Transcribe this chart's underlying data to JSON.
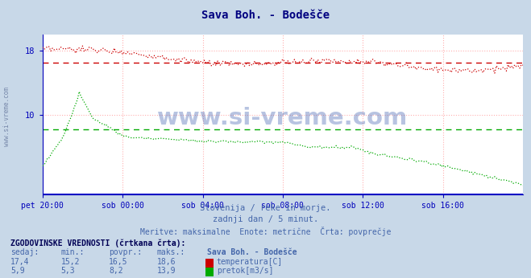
{
  "title": "Sava Boh. - Bodešče",
  "title_color": "#000080",
  "fig_bg_color": "#c8d8e8",
  "plot_bg_color": "#ffffff",
  "grid_color": "#ffb0b0",
  "axis_color": "#0000bb",
  "x_tick_labels": [
    "pet 20:00",
    "sob 00:00",
    "sob 04:00",
    "sob 08:00",
    "sob 12:00",
    "sob 16:00"
  ],
  "x_tick_positions": [
    0,
    48,
    96,
    144,
    192,
    240
  ],
  "total_points": 289,
  "y_min": 0,
  "y_max": 20,
  "temp_color": "#cc0000",
  "flow_color": "#00aa00",
  "temp_avg": 16.5,
  "flow_avg": 8.2,
  "subtitle1": "Slovenija / reke in morje.",
  "subtitle2": "zadnji dan / 5 minut.",
  "subtitle3": "Meritve: maksimalne  Enote: metrične  Črta: povprečje",
  "legend_title": "ZGODOVINSKE VREDNOSTI (črtkana črta):",
  "legend_headers": [
    "sedaj:",
    "min.:",
    "povpr.:",
    "maks.:",
    "Sava Boh. - Bodešče"
  ],
  "legend_row1": [
    "17,4",
    "15,2",
    "16,5",
    "18,6",
    "temperatura[C]"
  ],
  "legend_row2": [
    "5,9",
    "5,3",
    "8,2",
    "13,9",
    "pretok[m3/s]"
  ],
  "text_color": "#4466aa",
  "watermark": "www.si-vreme.com",
  "side_watermark_color": "#7788aa"
}
